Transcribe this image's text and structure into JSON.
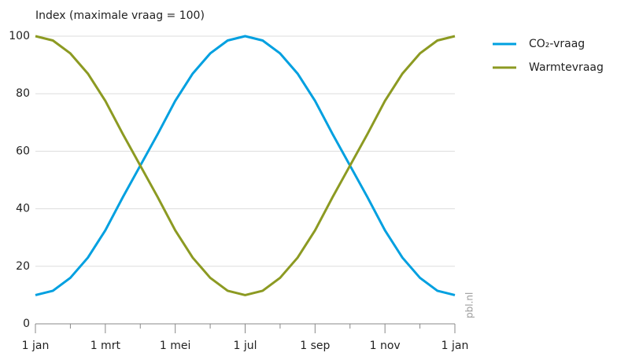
{
  "chart_data": {
    "type": "line",
    "title": "Index (maximale vraag = 100)",
    "x": [
      0,
      1,
      2,
      3,
      4,
      5,
      6,
      7,
      8,
      9,
      10,
      11,
      12,
      13,
      14,
      15,
      16,
      17,
      18,
      19,
      20,
      21,
      22,
      23,
      24
    ],
    "series": [
      {
        "name": "CO₂-vraag",
        "color": "#00a0e0",
        "values": [
          10,
          11.5,
          16,
          23,
          32.5,
          44,
          55,
          66,
          77.5,
          87,
          94,
          98.5,
          100,
          98.5,
          94,
          87,
          77.5,
          66,
          55,
          44,
          32.5,
          23,
          16,
          11.5,
          10
        ]
      },
      {
        "name": "Warmtevraag",
        "color": "#8c9a22",
        "values": [
          100,
          98.5,
          94,
          87,
          77.5,
          66,
          55,
          44,
          32.5,
          23,
          16,
          11.5,
          10,
          11.5,
          16,
          23,
          32.5,
          44,
          55,
          66,
          77.5,
          87,
          94,
          98.5,
          100
        ]
      }
    ],
    "xlim": [
      0,
      24
    ],
    "xticks": [
      {
        "value": 0,
        "label": "1 jan"
      },
      {
        "value": 4,
        "label": "1 mrt"
      },
      {
        "value": 8,
        "label": "1 mei"
      },
      {
        "value": 12,
        "label": "1 jul"
      },
      {
        "value": 16,
        "label": "1 sep"
      },
      {
        "value": 20,
        "label": "1 nov"
      },
      {
        "value": 24,
        "label": "1 jan"
      }
    ],
    "xticks_minor": [
      2,
      6,
      10,
      14,
      18,
      22
    ],
    "ylim": [
      0,
      100
    ],
    "yticks": [
      0,
      20,
      40,
      60,
      80,
      100
    ],
    "grid": true,
    "legend": "right",
    "source": "pbl.nl"
  }
}
